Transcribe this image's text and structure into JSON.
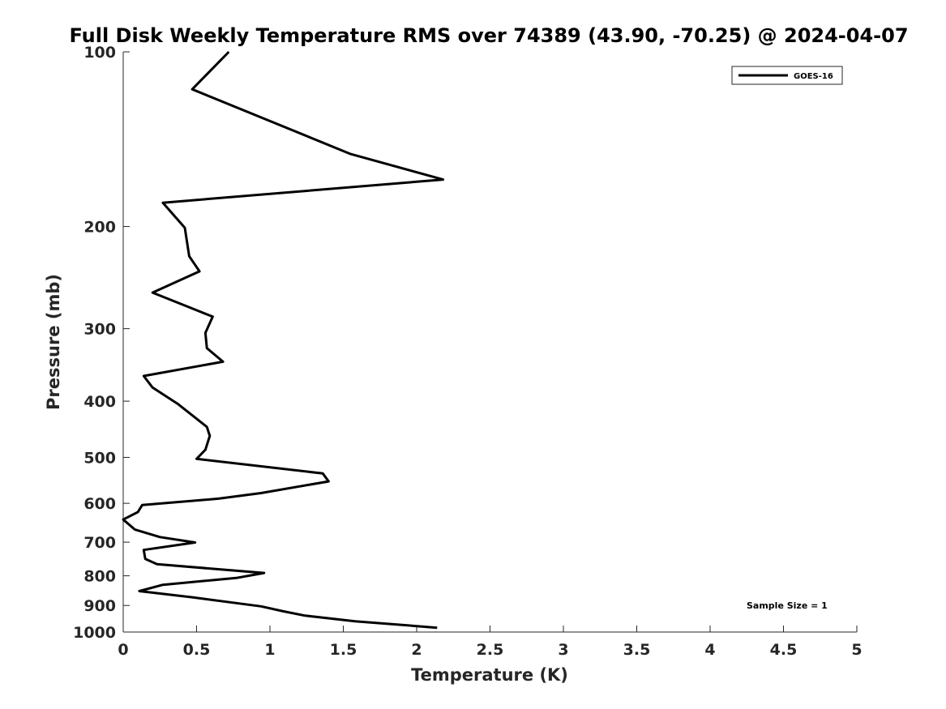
{
  "chart_data": {
    "type": "line",
    "title": "Full Disk Weekly Temperature RMS over 74389 (43.90, -70.25) @ 2024-04-07",
    "xlabel": "Temperature (K)",
    "ylabel": "Pressure (mb)",
    "xlim": [
      0,
      5
    ],
    "ylim": [
      100,
      1000
    ],
    "y_scale": "log",
    "y_reversed": true,
    "x_ticks": [
      "0",
      "0.5",
      "1",
      "1.5",
      "2",
      "2.5",
      "3",
      "3.5",
      "4",
      "4.5",
      "5"
    ],
    "y_ticks": [
      "100",
      "200",
      "300",
      "400",
      "500",
      "600",
      "700",
      "800",
      "900",
      "1000"
    ],
    "grid": false,
    "legend_position": "top-right",
    "annotation": "Sample Size = 1",
    "series": [
      {
        "name": "GOES-16",
        "color": "#000000",
        "points": [
          [
            0.72,
            100
          ],
          [
            0.47,
            116
          ],
          [
            1.55,
            150
          ],
          [
            2.18,
            166
          ],
          [
            0.27,
            182
          ],
          [
            0.42,
            201
          ],
          [
            0.45,
            225
          ],
          [
            0.52,
            239
          ],
          [
            0.2,
            260
          ],
          [
            0.61,
            286
          ],
          [
            0.56,
            305
          ],
          [
            0.57,
            324
          ],
          [
            0.68,
            342
          ],
          [
            0.14,
            362
          ],
          [
            0.2,
            379
          ],
          [
            0.37,
            404
          ],
          [
            0.57,
            443
          ],
          [
            0.59,
            459
          ],
          [
            0.56,
            485
          ],
          [
            0.5,
            503
          ],
          [
            1.36,
            533
          ],
          [
            1.4,
            550
          ],
          [
            0.94,
            576
          ],
          [
            0.65,
            589
          ],
          [
            0.13,
            604
          ],
          [
            0.1,
            621
          ],
          [
            0.0,
            640
          ],
          [
            0.08,
            666
          ],
          [
            0.25,
            686
          ],
          [
            0.49,
            701
          ],
          [
            0.14,
            722
          ],
          [
            0.15,
            748
          ],
          [
            0.23,
            764
          ],
          [
            0.96,
            791
          ],
          [
            0.77,
            807
          ],
          [
            0.27,
            829
          ],
          [
            0.11,
            850
          ],
          [
            0.47,
            871
          ],
          [
            0.94,
            903
          ],
          [
            1.09,
            921
          ],
          [
            1.24,
            937
          ],
          [
            1.58,
            958
          ],
          [
            2.14,
            983
          ]
        ]
      }
    ]
  }
}
